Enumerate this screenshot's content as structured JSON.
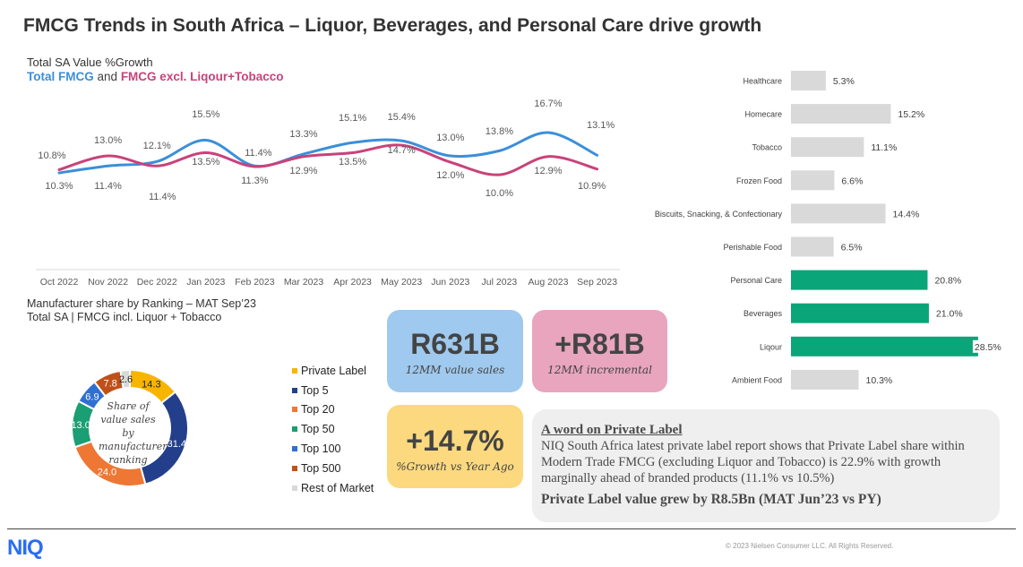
{
  "title": "FMCG Trends in South Africa – Liquor, Beverages, and Personal Care drive growth",
  "chart_data": [
    {
      "type": "line",
      "title": "Total SA Value %Growth",
      "subtitle_parts": {
        "s1": "Total FMCG",
        "and": "and",
        "s2": "FMCG excl. Liqour+Tobacco"
      },
      "categories": [
        "Oct 2022",
        "Nov 2022",
        "Dec 2022",
        "Jan 2023",
        "Feb 2023",
        "Mar 2023",
        "Apr 2023",
        "May 2023",
        "Jun 2023",
        "Jul 2023",
        "Aug 2023",
        "Sep 2023"
      ],
      "series": [
        {
          "name": "Total FMCG",
          "color": "#3b8fd9",
          "values": [
            10.3,
            11.4,
            12.1,
            15.5,
            11.4,
            13.3,
            15.1,
            15.4,
            13.0,
            13.8,
            16.7,
            13.1
          ],
          "labels": [
            "10.3%",
            "11.4%",
            "12.1%",
            "15.5%",
            "11.4%",
            "13.3%",
            "15.1%",
            "15.4%",
            "13.0%",
            "13.8%",
            "16.7%",
            "13.1%"
          ]
        },
        {
          "name": "FMCG excl. Liqour+Tobacco",
          "color": "#c9427a",
          "values": [
            10.8,
            13.0,
            11.4,
            13.5,
            11.3,
            12.9,
            13.5,
            14.7,
            12.0,
            10.0,
            12.9,
            10.9
          ],
          "labels": [
            "10.8%",
            "13.0%",
            "11.4%",
            "13.5%",
            "11.3%",
            "12.9%",
            "13.5%",
            "14.7%",
            "12.0%",
            "10.0%",
            "12.9%",
            "10.9%"
          ]
        }
      ],
      "grid": false
    },
    {
      "type": "bar",
      "orientation": "horizontal",
      "categories": [
        "Healthcare",
        "Homecare",
        "Tobacco",
        "Frozen Food",
        "Biscuits, Snacking, & Confectionary",
        "Perishable Food",
        "Personal Care",
        "Beverages",
        "Liqour",
        "Ambient Food"
      ],
      "values": [
        5.3,
        15.2,
        11.1,
        6.6,
        14.4,
        6.5,
        20.8,
        21.0,
        28.5,
        10.3
      ],
      "labels": [
        "5.3%",
        "15.2%",
        "11.1%",
        "6.6%",
        "14.4%",
        "6.5%",
        "20.8%",
        "21.0%",
        "28.5%",
        "10.3%"
      ],
      "highlight": [
        false,
        false,
        false,
        false,
        false,
        false,
        true,
        true,
        true,
        false
      ],
      "colors": {
        "default": "#d9d9d9",
        "highlight": "#0aa579"
      }
    },
    {
      "type": "pie",
      "donut": true,
      "title": "Manufacturer share by Ranking – MAT Sep’23",
      "subtitle": "Total SA | FMCG incl. Liquor + Tobacco",
      "center_text": "Share of value sales by manufacturer ranking",
      "slices": [
        {
          "name": "Private Label",
          "value": 14.3,
          "label": "14.3",
          "color": "#f7b500"
        },
        {
          "name": "Top 5",
          "value": 31.4,
          "label": "31.4",
          "color": "#233f8c"
        },
        {
          "name": "Top 20",
          "value": 24.0,
          "label": "24.0",
          "color": "#ee7733"
        },
        {
          "name": "Top 50",
          "value": 13.0,
          "label": "13.0",
          "color": "#1a9e73"
        },
        {
          "name": "Top 100",
          "value": 6.9,
          "label": "6.9",
          "color": "#2f6fd0"
        },
        {
          "name": "Top 500",
          "value": 7.8,
          "label": "7.8",
          "color": "#c0501a"
        },
        {
          "name": "Rest of Market",
          "value": 2.6,
          "label": "2.6",
          "color": "#d9d9d9"
        }
      ],
      "legend": "right"
    }
  ],
  "kpis": [
    {
      "value": "R631B",
      "caption": "12MM value sales",
      "color": "#9fc9ee"
    },
    {
      "value": "+R81B",
      "caption": "12MM incremental",
      "color": "#e8a5bd"
    },
    {
      "value": "+14.7%",
      "caption": "%Growth vs Year Ago",
      "color": "#fcd97e"
    }
  ],
  "private_label": {
    "heading": "A word on Private Label",
    "body": "NIQ South Africa latest private label report shows that Private Label share within Modern Trade FMCG (excluding Liquor and Tobacco) is 22.9% with growth marginally ahead of branded products (11.1% vs 10.5%)",
    "footer": "Private Label value grew by R8.5Bn (MAT Jun’23 vs PY)"
  },
  "footer": {
    "logo": "NIQ",
    "copyright": "© 2023 Nielsen Consumer LLC. All Rights Reserved."
  }
}
